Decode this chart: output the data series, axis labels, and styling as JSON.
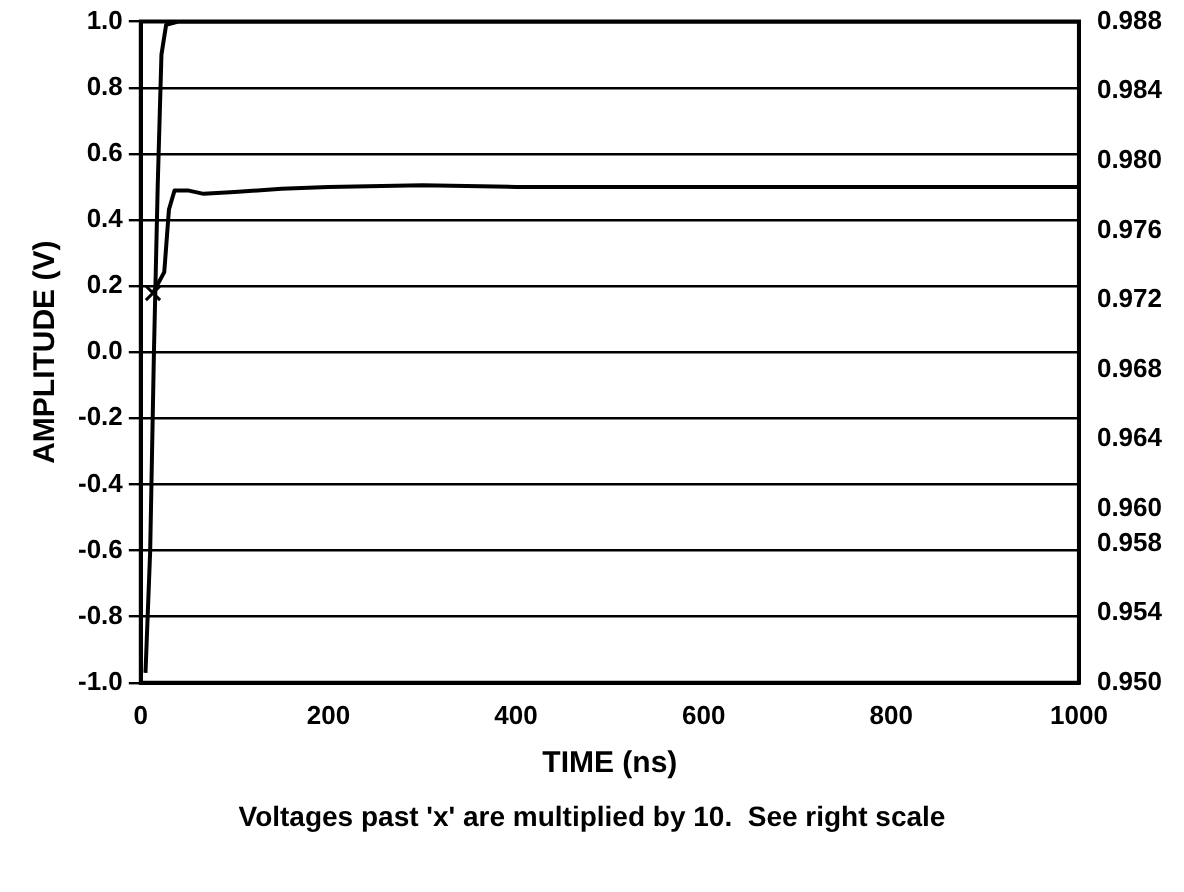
{
  "chart_data": {
    "type": "line",
    "xlabel": "TIME (ns)",
    "ylabel": "AMPLITUDE (V)",
    "xlim": [
      0,
      1000
    ],
    "xticks": [
      0,
      200,
      400,
      600,
      800,
      1000
    ],
    "ylim": [
      -1,
      1
    ],
    "yticks": [
      {
        "value": -1,
        "label": "-1.0"
      },
      {
        "value": -0.8,
        "label": "-0.8"
      },
      {
        "value": -0.6,
        "label": "-0.6"
      },
      {
        "value": -0.4,
        "label": "-0.4"
      },
      {
        "value": -0.2,
        "label": "-0.2"
      },
      {
        "value": 0,
        "label": "0.0"
      },
      {
        "value": 0.2,
        "label": "0.2"
      },
      {
        "value": 0.4,
        "label": "0.4"
      },
      {
        "value": 0.6,
        "label": "0.6"
      },
      {
        "value": 0.8,
        "label": "0.8"
      },
      {
        "value": 1,
        "label": "1.0"
      }
    ],
    "y2lim": [
      0.95,
      0.988
    ],
    "y2ticks": [
      {
        "value": 0.95,
        "label": "0.950"
      },
      0.954,
      0.958,
      {
        "value": 0.96,
        "label": "0.960"
      },
      0.964,
      0.968,
      0.972,
      0.976,
      {
        "value": 0.98,
        "label": "0.980"
      },
      0.984,
      0.988
    ],
    "grid": "y",
    "legend": false,
    "line_style": "solid",
    "series": [
      {
        "color": "#000000",
        "x": [
          5,
          10,
          14,
          18,
          22,
          27,
          40,
          1000
        ],
        "values": [
          -0.97,
          -0.6,
          0,
          0.5,
          0.9,
          0.99,
          1.0,
          1.0
        ]
      },
      {
        "color": "#000000",
        "axis": "y2",
        "x": [
          13,
          25,
          30,
          36,
          50,
          67,
          100,
          150,
          200,
          300,
          400,
          500,
          600,
          700,
          800,
          900,
          1000
        ],
        "values": [
          0.9724,
          0.9736,
          0.9772,
          0.9783,
          0.9783,
          0.9781,
          0.9782,
          0.9784,
          0.9785,
          0.9786,
          0.9785,
          0.9785,
          0.9785,
          0.9785,
          0.9785,
          0.9785,
          0.9785
        ]
      },
      {
        "type": "scatter",
        "marker": "cross",
        "color": "#000000",
        "axis": "y2",
        "x": [
          13
        ],
        "values": [
          0.9724
        ]
      }
    ],
    "annotations": [
      "Voltages past 'x' are multiplied by 10.  See right scale"
    ]
  }
}
